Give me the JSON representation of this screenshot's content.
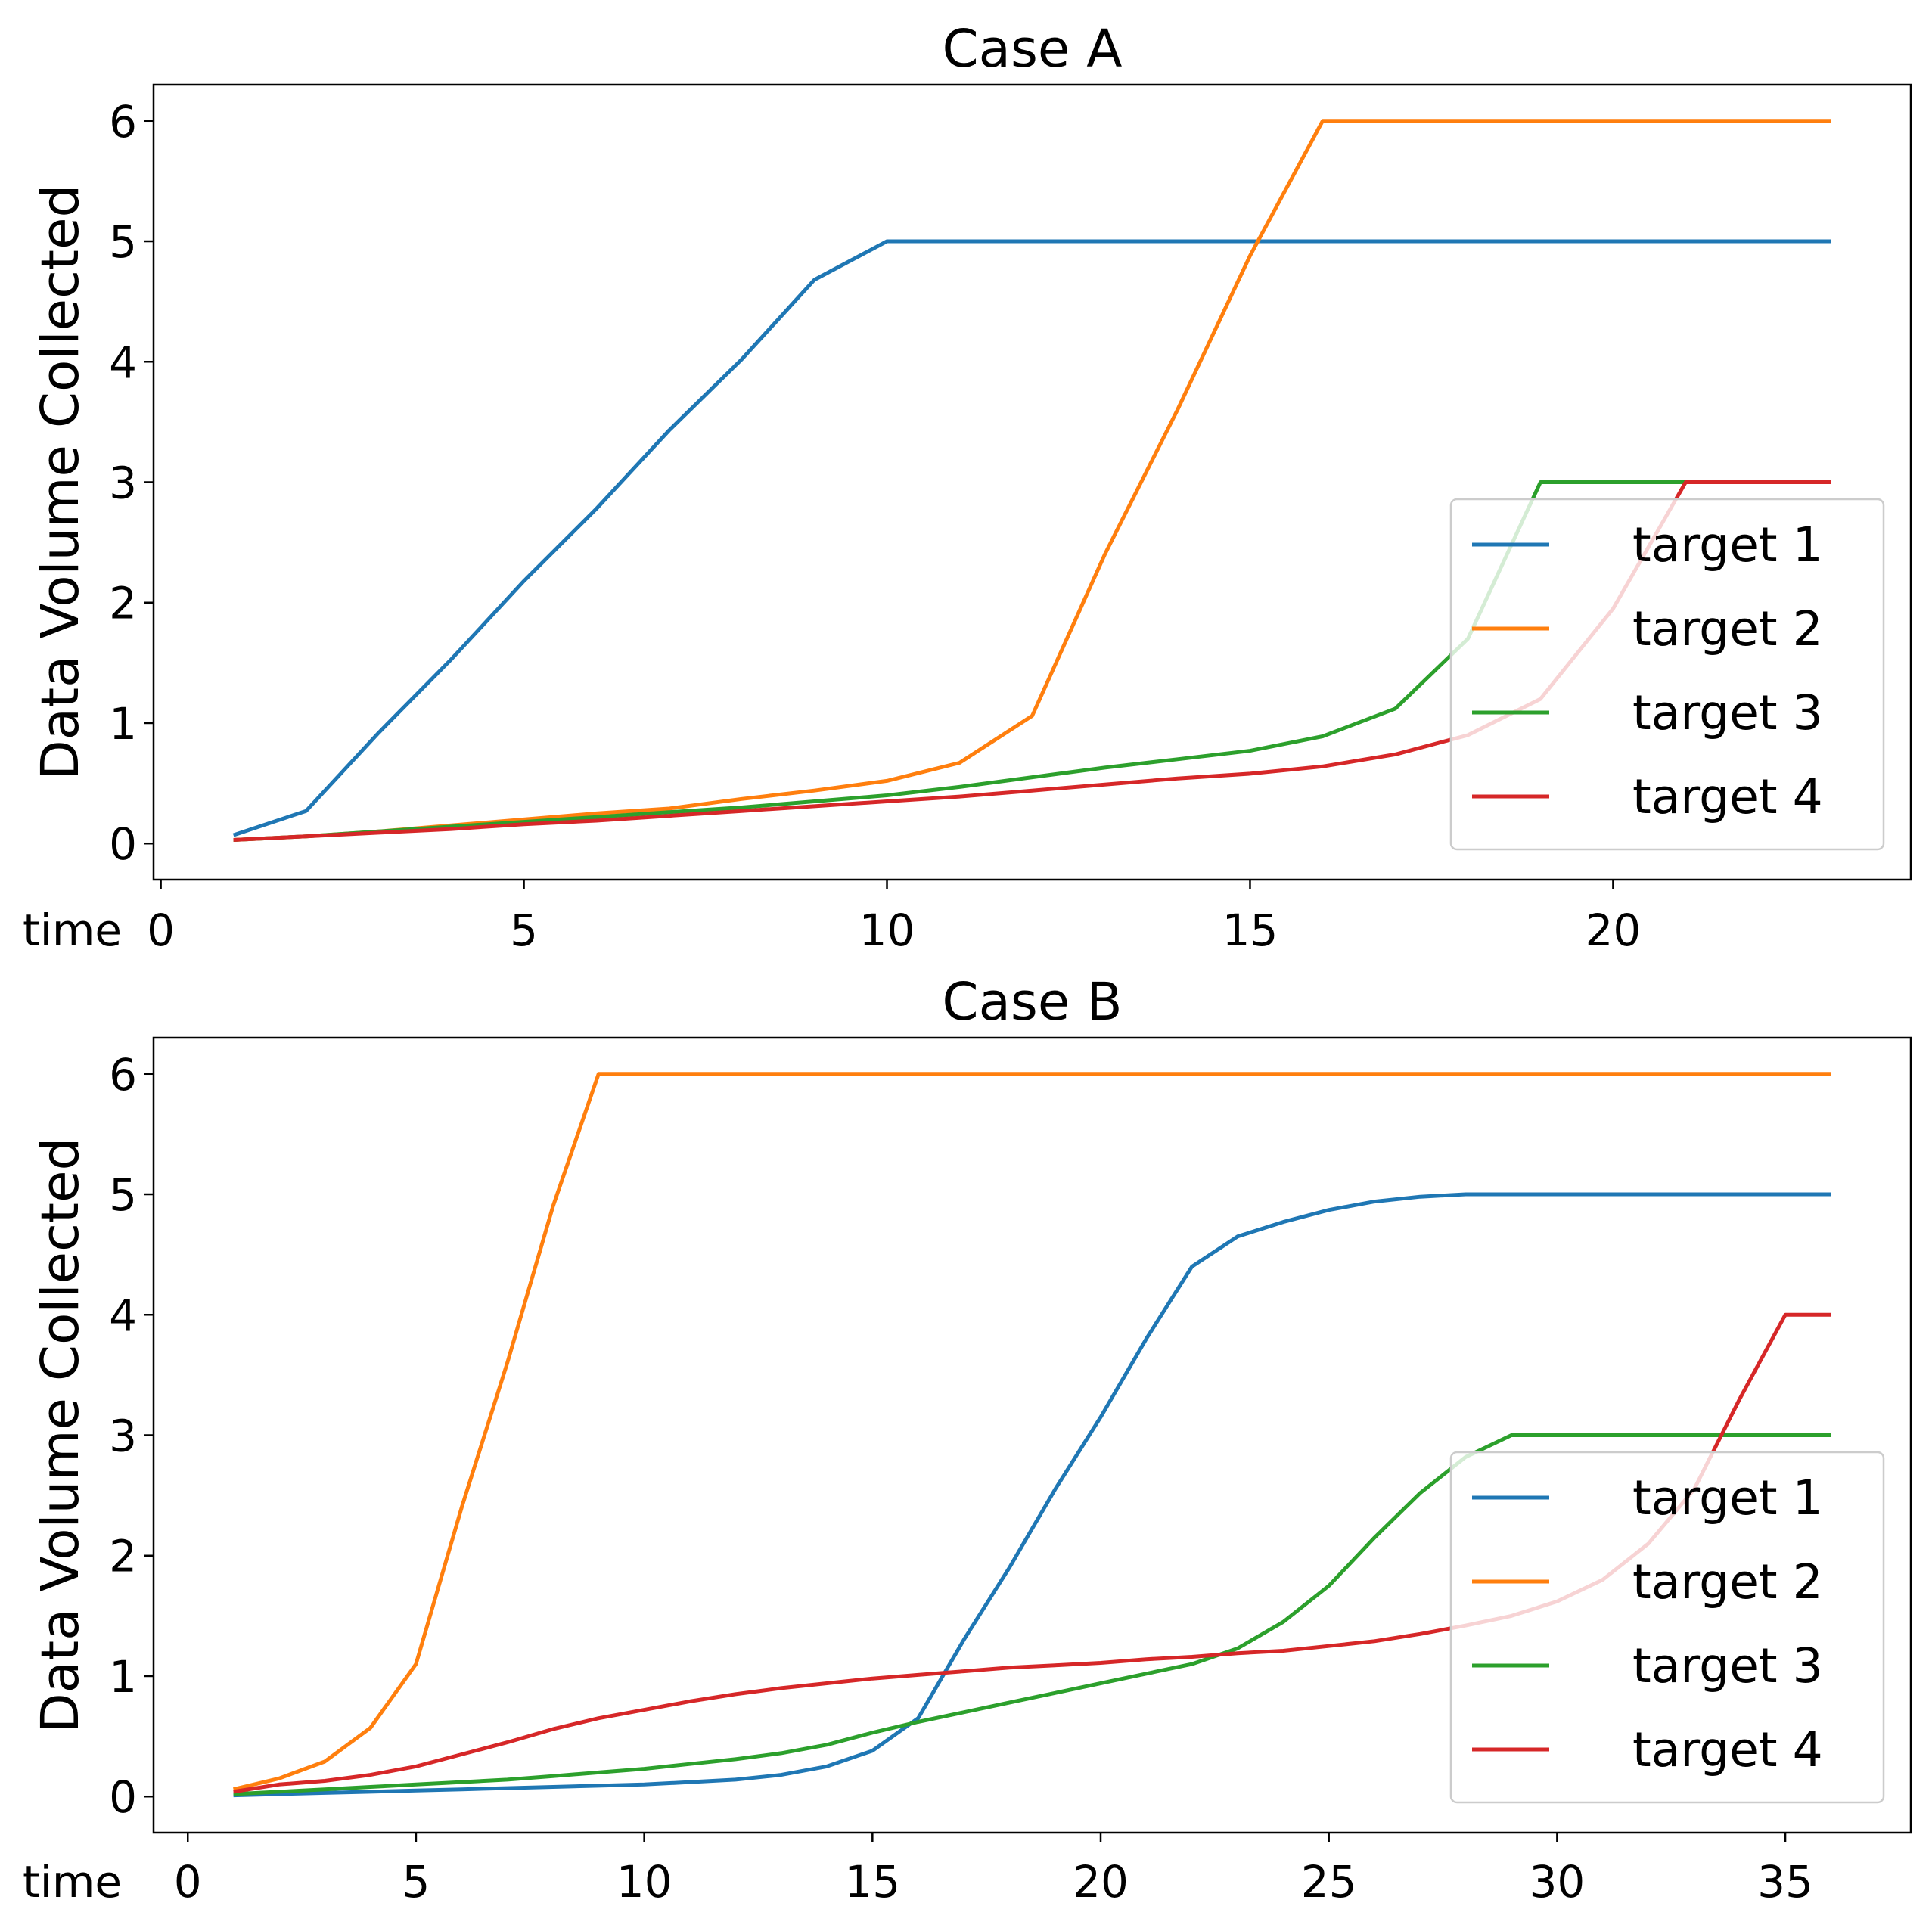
{
  "chart_data": [
    {
      "type": "line",
      "title": "Case A",
      "xlabel": "time",
      "ylabel": "Data Volume Collected",
      "xlim": [
        -0.1,
        24.1
      ],
      "ylim": [
        -0.3,
        6.3
      ],
      "xticks": [
        0,
        5,
        10,
        15,
        20
      ],
      "yticks": [
        0,
        1,
        2,
        3,
        4,
        5,
        6
      ],
      "legend_position": "lower-right",
      "x": [
        1,
        2,
        3,
        4,
        5,
        6,
        7,
        8,
        9,
        10,
        11,
        12,
        13,
        14,
        15,
        16,
        17,
        18,
        19,
        20,
        21,
        22,
        23
      ],
      "series": [
        {
          "name": "target 1",
          "color": "#1f77b4",
          "values": [
            0.07,
            0.27,
            0.92,
            1.53,
            2.18,
            2.78,
            3.43,
            4.02,
            4.68,
            5,
            5,
            5,
            5,
            5,
            5,
            5,
            5,
            5,
            5,
            5,
            5,
            5,
            5
          ]
        },
        {
          "name": "target 2",
          "color": "#ff7f0e",
          "values": [
            0.03,
            0.06,
            0.1,
            0.15,
            0.2,
            0.25,
            0.29,
            0.37,
            0.44,
            0.52,
            0.67,
            1.06,
            2.4,
            3.6,
            4.88,
            6,
            6,
            6,
            6,
            6,
            6,
            6,
            6
          ]
        },
        {
          "name": "target 3",
          "color": "#2ca02c",
          "values": [
            0.03,
            0.06,
            0.1,
            0.14,
            0.18,
            0.22,
            0.26,
            0.3,
            0.35,
            0.4,
            0.47,
            0.55,
            0.63,
            0.7,
            0.77,
            0.89,
            1.12,
            1.7,
            3,
            3,
            3,
            3,
            3
          ]
        },
        {
          "name": "target 4",
          "color": "#d62728",
          "values": [
            0.03,
            0.06,
            0.09,
            0.12,
            0.16,
            0.19,
            0.23,
            0.27,
            0.31,
            0.35,
            0.39,
            0.44,
            0.49,
            0.54,
            0.58,
            0.64,
            0.74,
            0.9,
            1.2,
            1.95,
            3,
            3,
            3
          ]
        }
      ]
    },
    {
      "type": "line",
      "title": "Case B",
      "xlabel": "time",
      "ylabel": "Data Volume Collected",
      "xlim": [
        -0.75,
        37.75
      ],
      "ylim": [
        -0.3,
        6.3
      ],
      "xticks": [
        0,
        5,
        10,
        15,
        20,
        25,
        30,
        35
      ],
      "yticks": [
        0,
        1,
        2,
        3,
        4,
        5,
        6
      ],
      "legend_position": "lower-right",
      "x": [
        1,
        2,
        3,
        4,
        5,
        6,
        7,
        8,
        9,
        10,
        11,
        12,
        13,
        14,
        15,
        16,
        17,
        18,
        19,
        20,
        21,
        22,
        23,
        24,
        25,
        26,
        27,
        28,
        29,
        30,
        31,
        32,
        33,
        34,
        35,
        36
      ],
      "series": [
        {
          "name": "target 1",
          "color": "#1f77b4",
          "values": [
            0.01,
            0.02,
            0.03,
            0.04,
            0.05,
            0.06,
            0.07,
            0.08,
            0.09,
            0.1,
            0.12,
            0.14,
            0.18,
            0.25,
            0.38,
            0.65,
            1.3,
            1.9,
            2.55,
            3.15,
            3.8,
            4.4,
            4.65,
            4.77,
            4.87,
            4.94,
            4.98,
            5,
            5,
            5,
            5,
            5,
            5,
            5,
            5,
            5
          ]
        },
        {
          "name": "target 2",
          "color": "#ff7f0e",
          "values": [
            0.06,
            0.15,
            0.29,
            0.57,
            1.1,
            2.4,
            3.6,
            4.9,
            6,
            6,
            6,
            6,
            6,
            6,
            6,
            6,
            6,
            6,
            6,
            6,
            6,
            6,
            6,
            6,
            6,
            6,
            6,
            6,
            6,
            6,
            6,
            6,
            6,
            6,
            6,
            6
          ]
        },
        {
          "name": "target 3",
          "color": "#2ca02c",
          "values": [
            0.02,
            0.04,
            0.06,
            0.08,
            0.1,
            0.12,
            0.14,
            0.17,
            0.2,
            0.23,
            0.27,
            0.31,
            0.36,
            0.43,
            0.53,
            0.62,
            0.7,
            0.78,
            0.86,
            0.94,
            1.02,
            1.1,
            1.23,
            1.45,
            1.75,
            2.15,
            2.52,
            2.82,
            3,
            3,
            3,
            3,
            3,
            3,
            3,
            3
          ]
        },
        {
          "name": "target 4",
          "color": "#d62728",
          "values": [
            0.04,
            0.1,
            0.13,
            0.18,
            0.25,
            0.35,
            0.45,
            0.56,
            0.65,
            0.72,
            0.79,
            0.85,
            0.9,
            0.94,
            0.98,
            1.01,
            1.04,
            1.07,
            1.09,
            1.11,
            1.14,
            1.16,
            1.19,
            1.21,
            1.25,
            1.29,
            1.35,
            1.42,
            1.5,
            1.62,
            1.8,
            2.1,
            2.55,
            3.3,
            4,
            4
          ]
        }
      ]
    }
  ]
}
